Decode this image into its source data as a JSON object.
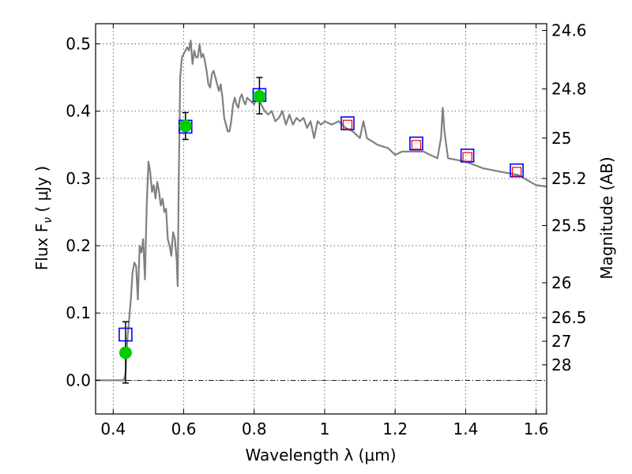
{
  "chart_data": {
    "type": "scatter",
    "title": "",
    "xlabel": "Wavelength  λ (μm)",
    "ylabel": "Flux  F",
    "ylabel_subscript": "ν",
    "ylabel_unit": "  ( μJy )",
    "y2label": "Magnitude (AB)",
    "xlim": [
      0.35,
      1.63
    ],
    "ylim": [
      -0.05,
      0.53
    ],
    "grid": true,
    "x_ticks": [
      0.4,
      0.6,
      0.8,
      1.0,
      1.2,
      1.4,
      1.6
    ],
    "x_tick_labels": [
      "0.4",
      "0.6",
      "0.8",
      "1",
      "1.2",
      "1.4",
      "1.6"
    ],
    "y_ticks": [
      0.0,
      0.1,
      0.2,
      0.3,
      0.4,
      0.5
    ],
    "y_tick_labels": [
      "0.0",
      "0.1",
      "0.2",
      "0.3",
      "0.4",
      "0.5"
    ],
    "y2_ticks": [
      {
        "label": "24.6",
        "flux": 0.52
      },
      {
        "label": "24.8",
        "flux": 0.433
      },
      {
        "label": "25",
        "flux": 0.36
      },
      {
        "label": "25.2",
        "flux": 0.3
      },
      {
        "label": "25.5",
        "flux": 0.23
      },
      {
        "label": "26",
        "flux": 0.145
      },
      {
        "label": "26.5",
        "flux": 0.093
      },
      {
        "label": "27",
        "flux": 0.058
      },
      {
        "label": "28",
        "flux": 0.023
      }
    ],
    "zero_line": 0.0,
    "series": [
      {
        "kind": "sed_model",
        "color": "#808080",
        "points": [
          [
            0.35,
            0.0
          ],
          [
            0.4,
            0.0
          ],
          [
            0.43,
            0.0
          ],
          [
            0.435,
            0.01
          ],
          [
            0.44,
            0.06
          ],
          [
            0.445,
            0.09
          ],
          [
            0.45,
            0.12
          ],
          [
            0.455,
            0.16
          ],
          [
            0.46,
            0.175
          ],
          [
            0.465,
            0.17
          ],
          [
            0.47,
            0.12
          ],
          [
            0.475,
            0.2
          ],
          [
            0.48,
            0.19
          ],
          [
            0.485,
            0.21
          ],
          [
            0.49,
            0.15
          ],
          [
            0.495,
            0.26
          ],
          [
            0.5,
            0.325
          ],
          [
            0.505,
            0.31
          ],
          [
            0.51,
            0.28
          ],
          [
            0.515,
            0.29
          ],
          [
            0.52,
            0.27
          ],
          [
            0.525,
            0.295
          ],
          [
            0.53,
            0.28
          ],
          [
            0.535,
            0.26
          ],
          [
            0.54,
            0.27
          ],
          [
            0.545,
            0.25
          ],
          [
            0.55,
            0.255
          ],
          [
            0.555,
            0.21
          ],
          [
            0.56,
            0.2
          ],
          [
            0.565,
            0.185
          ],
          [
            0.57,
            0.22
          ],
          [
            0.575,
            0.21
          ],
          [
            0.58,
            0.18
          ],
          [
            0.583,
            0.14
          ],
          [
            0.586,
            0.3
          ],
          [
            0.59,
            0.45
          ],
          [
            0.595,
            0.48
          ],
          [
            0.6,
            0.485
          ],
          [
            0.605,
            0.49
          ],
          [
            0.61,
            0.495
          ],
          [
            0.615,
            0.49
          ],
          [
            0.62,
            0.505
          ],
          [
            0.625,
            0.47
          ],
          [
            0.63,
            0.49
          ],
          [
            0.635,
            0.48
          ],
          [
            0.64,
            0.48
          ],
          [
            0.645,
            0.5
          ],
          [
            0.65,
            0.48
          ],
          [
            0.655,
            0.485
          ],
          [
            0.66,
            0.475
          ],
          [
            0.665,
            0.46
          ],
          [
            0.67,
            0.44
          ],
          [
            0.675,
            0.435
          ],
          [
            0.68,
            0.455
          ],
          [
            0.685,
            0.46
          ],
          [
            0.69,
            0.45
          ],
          [
            0.695,
            0.44
          ],
          [
            0.7,
            0.43
          ],
          [
            0.705,
            0.44
          ],
          [
            0.71,
            0.42
          ],
          [
            0.715,
            0.39
          ],
          [
            0.72,
            0.38
          ],
          [
            0.725,
            0.37
          ],
          [
            0.73,
            0.37
          ],
          [
            0.735,
            0.385
          ],
          [
            0.74,
            0.41
          ],
          [
            0.745,
            0.42
          ],
          [
            0.75,
            0.41
          ],
          [
            0.755,
            0.405
          ],
          [
            0.76,
            0.42
          ],
          [
            0.765,
            0.425
          ],
          [
            0.77,
            0.415
          ],
          [
            0.775,
            0.41
          ],
          [
            0.78,
            0.42
          ],
          [
            0.79,
            0.415
          ],
          [
            0.8,
            0.41
          ],
          [
            0.81,
            0.425
          ],
          [
            0.82,
            0.41
          ],
          [
            0.83,
            0.4
          ],
          [
            0.84,
            0.395
          ],
          [
            0.85,
            0.4
          ],
          [
            0.86,
            0.385
          ],
          [
            0.87,
            0.39
          ],
          [
            0.88,
            0.4
          ],
          [
            0.89,
            0.38
          ],
          [
            0.9,
            0.395
          ],
          [
            0.91,
            0.38
          ],
          [
            0.92,
            0.39
          ],
          [
            0.93,
            0.385
          ],
          [
            0.94,
            0.39
          ],
          [
            0.95,
            0.375
          ],
          [
            0.96,
            0.385
          ],
          [
            0.97,
            0.36
          ],
          [
            0.98,
            0.385
          ],
          [
            0.99,
            0.38
          ],
          [
            1.0,
            0.385
          ],
          [
            1.02,
            0.38
          ],
          [
            1.04,
            0.385
          ],
          [
            1.06,
            0.375
          ],
          [
            1.08,
            0.37
          ],
          [
            1.1,
            0.36
          ],
          [
            1.11,
            0.385
          ],
          [
            1.12,
            0.36
          ],
          [
            1.15,
            0.35
          ],
          [
            1.18,
            0.345
          ],
          [
            1.2,
            0.335
          ],
          [
            1.22,
            0.34
          ],
          [
            1.25,
            0.34
          ],
          [
            1.28,
            0.34
          ],
          [
            1.3,
            0.335
          ],
          [
            1.32,
            0.33
          ],
          [
            1.33,
            0.36
          ],
          [
            1.335,
            0.405
          ],
          [
            1.34,
            0.37
          ],
          [
            1.35,
            0.33
          ],
          [
            1.4,
            0.325
          ],
          [
            1.45,
            0.315
          ],
          [
            1.5,
            0.31
          ],
          [
            1.55,
            0.305
          ],
          [
            1.6,
            0.29
          ],
          [
            1.63,
            0.288
          ]
        ]
      },
      {
        "kind": "model_photometry_blue_squares",
        "color": "#0000ff",
        "points": [
          [
            0.435,
            0.068
          ],
          [
            0.605,
            0.377
          ],
          [
            0.815,
            0.424
          ],
          [
            1.065,
            0.382
          ],
          [
            1.26,
            0.352
          ],
          [
            1.405,
            0.334
          ],
          [
            1.545,
            0.312
          ]
        ]
      },
      {
        "kind": "model_photometry_red_squares",
        "color": "#ff0000",
        "points": [
          [
            1.065,
            0.38
          ],
          [
            1.26,
            0.35
          ],
          [
            1.405,
            0.332
          ],
          [
            1.545,
            0.31
          ]
        ]
      },
      {
        "kind": "observed_green_points",
        "color": "#00cc00",
        "points": [
          {
            "x": 0.435,
            "y": 0.041,
            "ylo": -0.004,
            "yhi": 0.087
          },
          {
            "x": 0.605,
            "y": 0.378,
            "ylo": 0.358,
            "yhi": 0.398
          },
          {
            "x": 0.815,
            "y": 0.422,
            "ylo": 0.396,
            "yhi": 0.45
          }
        ]
      }
    ]
  }
}
